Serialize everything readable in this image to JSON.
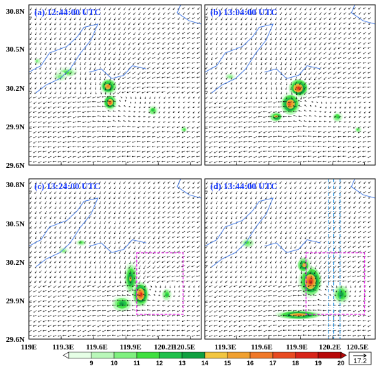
{
  "panels": [
    {
      "id": "a",
      "title": "(a) 12:44:00 UTC",
      "box": null,
      "lines": []
    },
    {
      "id": "b",
      "title": "(b) 13:04:00 UTC",
      "box": null,
      "lines": []
    },
    {
      "id": "c",
      "title": "(c) 13:24:00 UTC",
      "box": [
        120.0,
        29.8,
        120.43,
        30.3
      ],
      "lines": []
    },
    {
      "id": "d",
      "title": "(d) 13:44:00 UTC",
      "box": [
        119.95,
        29.8,
        120.5,
        30.3
      ],
      "lines": [
        120.16,
        120.21,
        120.27
      ]
    }
  ],
  "axes": {
    "lon_range": [
      119.0,
      120.6
    ],
    "lat_range": [
      29.6,
      30.9
    ],
    "lat_ticks": [
      {
        "value": 30.8,
        "label": "30.8N"
      },
      {
        "value": 30.5,
        "label": "30.5N"
      },
      {
        "value": 30.2,
        "label": "30.2N"
      },
      {
        "value": 29.9,
        "label": "29.9N"
      },
      {
        "value": 29.6,
        "label": "29.6N"
      }
    ],
    "lon_ticks": [
      {
        "value": 119.0,
        "label": "119E"
      },
      {
        "value": 119.3,
        "label": "119.3E"
      },
      {
        "value": 119.6,
        "label": "119.6E"
      },
      {
        "value": 119.9,
        "label": "119.9E"
      },
      {
        "value": 120.2,
        "label": "120.2E"
      },
      {
        "value": 120.5,
        "label": "120.5E"
      }
    ]
  },
  "colorbar": {
    "labels": [
      "9",
      "10",
      "11",
      "12",
      "13",
      "14",
      "15",
      "16",
      "17",
      "18",
      "19",
      "20"
    ],
    "colors": [
      "#e6ffe6",
      "#b9f7b9",
      "#7ff07f",
      "#3fe03f",
      "#1fc04a",
      "#10a040",
      "#f2c640",
      "#f0a030",
      "#f07828",
      "#e84a20",
      "#d82418",
      "#b80808"
    ]
  },
  "reference_vector": {
    "label": "17.2"
  },
  "colors": {
    "coast": "#4a7fe6",
    "box": "#e020e0",
    "dashline": "#2090e0",
    "title": "#1a3cff"
  }
}
